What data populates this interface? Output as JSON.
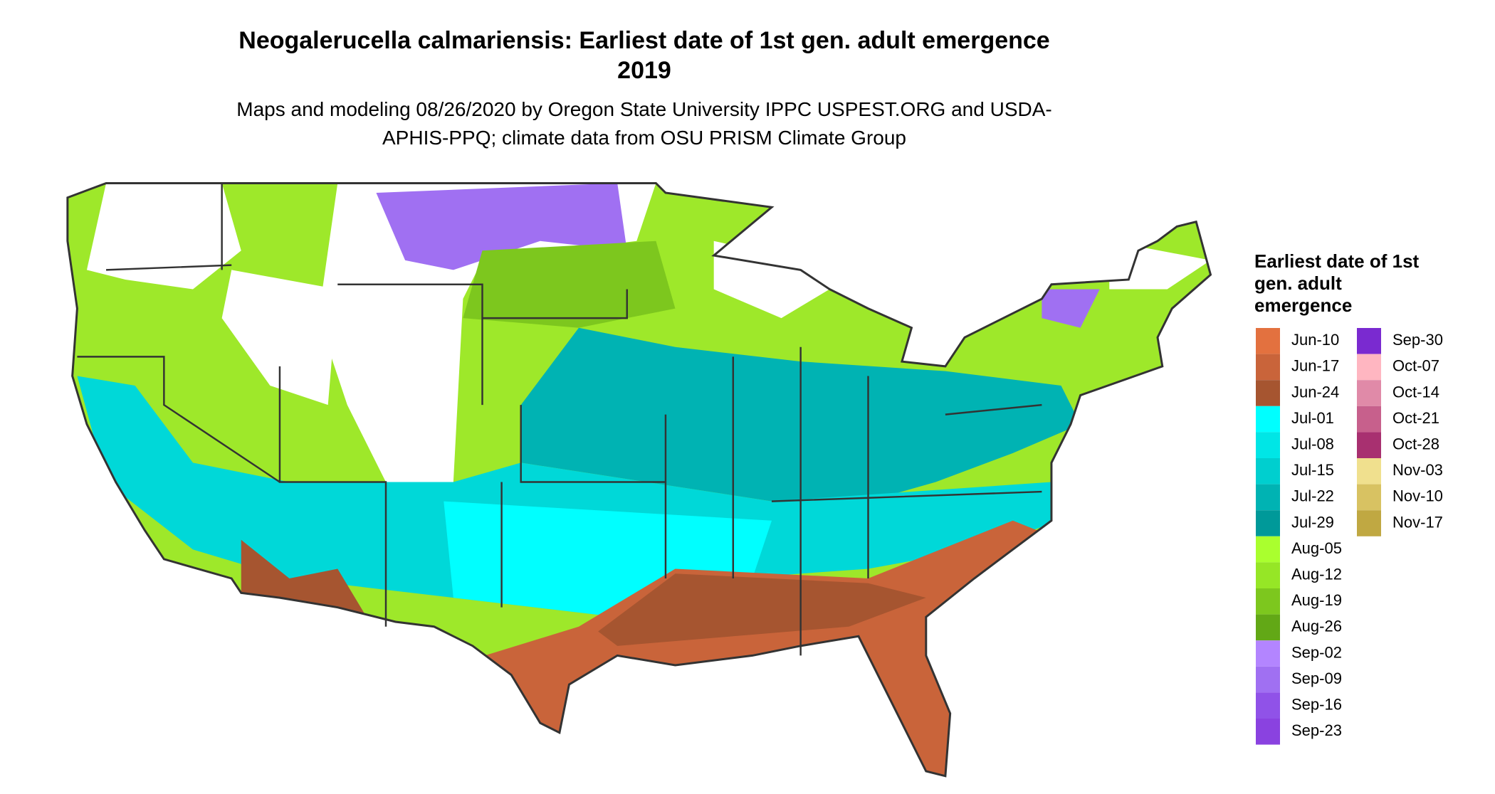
{
  "title": "Neogalerucella calmariensis: Earliest date of 1st gen. adult emergence 2019",
  "subtitle": "Maps and modeling 08/26/2020 by Oregon State University IPPC USPEST.ORG and USDA-APHIS-PPQ; climate data from OSU PRISM Climate Group",
  "legend": {
    "title": "Earliest date of 1st gen. adult emergence",
    "items": [
      {
        "label": "Jun-10",
        "color": "#e3713f"
      },
      {
        "label": "Jun-17",
        "color": "#c9643a"
      },
      {
        "label": "Jun-24",
        "color": "#a65530"
      },
      {
        "label": "Jul-01",
        "color": "#00ffff"
      },
      {
        "label": "Jul-08",
        "color": "#00e6e6"
      },
      {
        "label": "Jul-15",
        "color": "#00cfcf"
      },
      {
        "label": "Jul-22",
        "color": "#00b3b3"
      },
      {
        "label": "Jul-29",
        "color": "#009999"
      },
      {
        "label": "Aug-05",
        "color": "#aaff2e"
      },
      {
        "label": "Aug-12",
        "color": "#96e626"
      },
      {
        "label": "Aug-19",
        "color": "#7dc71e"
      },
      {
        "label": "Aug-26",
        "color": "#62a816"
      },
      {
        "label": "Sep-02",
        "color": "#b385ff"
      },
      {
        "label": "Sep-09",
        "color": "#a070f2"
      },
      {
        "label": "Sep-16",
        "color": "#9052e8"
      },
      {
        "label": "Sep-23",
        "color": "#8a42e0"
      },
      {
        "label": "Sep-30",
        "color": "#7a2ad0"
      },
      {
        "label": "Oct-07",
        "color": "#ffb6c1"
      },
      {
        "label": "Oct-14",
        "color": "#e08aa8"
      },
      {
        "label": "Oct-21",
        "color": "#c7608c"
      },
      {
        "label": "Oct-28",
        "color": "#a83070"
      },
      {
        "label": "Nov-03",
        "color": "#f0e08e"
      },
      {
        "label": "Nov-10",
        "color": "#d8c262"
      },
      {
        "label": "Nov-17",
        "color": "#c0a842"
      }
    ]
  }
}
